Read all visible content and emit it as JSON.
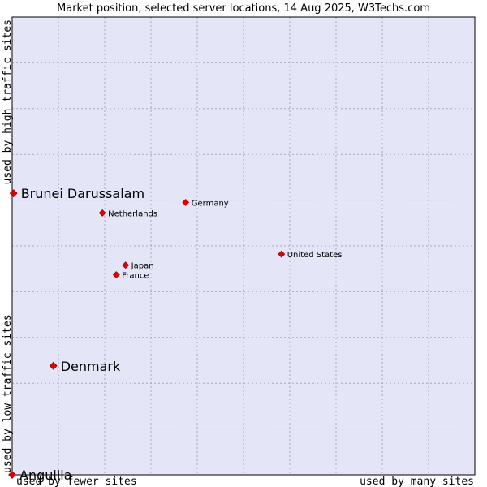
{
  "chart_data": {
    "type": "scatter",
    "title": "Market position, selected server locations, 14 Aug 2025, W3Techs.com",
    "xlabel_left": "used by fewer sites",
    "xlabel_right": "used by many sites",
    "ylabel_bottom": "used by low traffic sites",
    "ylabel_top": "used by high traffic sites",
    "xlim": [
      0,
      100
    ],
    "ylim": [
      0,
      100
    ],
    "grid": true,
    "colors": {
      "plot_bg": "#e4e6f8",
      "grid": "#a8a8c0",
      "point": "#e00000",
      "axis": "#000000"
    },
    "points": [
      {
        "label": "Brunei Darussalam",
        "x": 0.3,
        "y": 61.5,
        "highlight": true
      },
      {
        "label": "Germany",
        "x": 37.5,
        "y": 59.5,
        "highlight": false
      },
      {
        "label": "Netherlands",
        "x": 19.5,
        "y": 57.2,
        "highlight": false
      },
      {
        "label": "United States",
        "x": 58.2,
        "y": 48.2,
        "highlight": false
      },
      {
        "label": "Japan",
        "x": 24.5,
        "y": 45.8,
        "highlight": false
      },
      {
        "label": "France",
        "x": 22.5,
        "y": 43.7,
        "highlight": false
      },
      {
        "label": "Denmark",
        "x": 8.9,
        "y": 23.8,
        "highlight": true
      },
      {
        "label": "Anguilla",
        "x": 0,
        "y": 0,
        "highlight": true
      }
    ]
  }
}
